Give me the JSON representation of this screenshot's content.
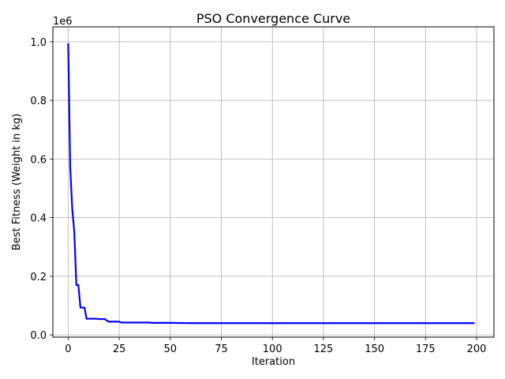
{
  "chart_data": {
    "type": "line",
    "title": "PSO Convergence Curve",
    "xlabel": "Iteration",
    "ylabel": "Best Fitness (Weight in kg)",
    "y_offset_label": "1e6",
    "xlim": [
      -7.5,
      208.5
    ],
    "ylim": [
      -0.0078,
      1.0508
    ],
    "x_ticks": [
      0,
      25,
      50,
      75,
      100,
      125,
      150,
      175,
      200
    ],
    "y_ticks": [
      0.0,
      0.2,
      0.4,
      0.6,
      0.8,
      1.0
    ],
    "y_tick_labels": [
      "0.0",
      "0.2",
      "0.4",
      "0.6",
      "0.8",
      "1.0"
    ],
    "grid": true,
    "series": [
      {
        "color": "#0000ff",
        "points": [
          [
            0,
            0.995
          ],
          [
            1,
            0.57
          ],
          [
            2,
            0.43
          ],
          [
            3,
            0.35
          ],
          [
            4,
            0.17
          ],
          [
            5,
            0.17
          ],
          [
            6,
            0.093
          ],
          [
            7,
            0.093
          ],
          [
            8,
            0.093
          ],
          [
            9,
            0.055
          ],
          [
            10,
            0.055
          ],
          [
            11,
            0.055
          ],
          [
            12,
            0.055
          ],
          [
            13,
            0.055
          ],
          [
            14,
            0.055
          ],
          [
            15,
            0.054
          ],
          [
            16,
            0.054
          ],
          [
            17,
            0.054
          ],
          [
            18,
            0.054
          ],
          [
            19,
            0.048
          ],
          [
            20,
            0.045
          ],
          [
            21,
            0.045
          ],
          [
            22,
            0.045
          ],
          [
            23,
            0.045
          ],
          [
            24,
            0.045
          ],
          [
            25,
            0.045
          ],
          [
            26,
            0.042
          ],
          [
            30,
            0.042
          ],
          [
            35,
            0.042
          ],
          [
            40,
            0.042
          ],
          [
            41,
            0.041
          ],
          [
            50,
            0.041
          ],
          [
            60,
            0.04
          ],
          [
            80,
            0.04
          ],
          [
            100,
            0.04
          ],
          [
            125,
            0.04
          ],
          [
            150,
            0.04
          ],
          [
            175,
            0.04
          ],
          [
            199,
            0.04
          ]
        ]
      }
    ]
  }
}
